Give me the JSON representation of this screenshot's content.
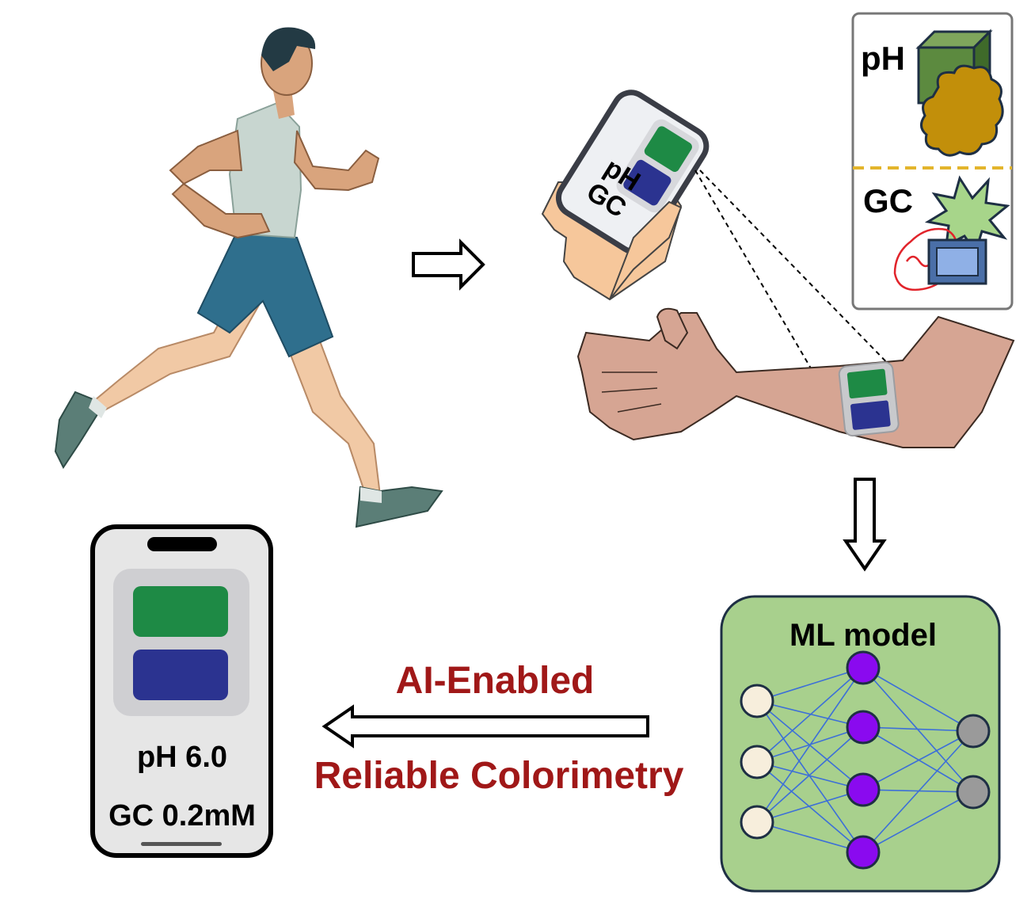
{
  "handheld_phone": {
    "label_top": "pH",
    "label_bottom": "GC",
    "pad_top_color": "#1E8A45",
    "pad_bottom_color": "#2B3390"
  },
  "mechanism_box": {
    "top_label": "pH",
    "bottom_label": "GC",
    "divider_color": "#E3B52C"
  },
  "ml_box": {
    "title": "ML model",
    "background_color": "#A8D08D",
    "input_node_color": "#F7EEDC",
    "hidden_node_color": "#8A0AEF",
    "output_node_color": "#9A9A9A",
    "edge_color": "#3C6FD8"
  },
  "arrow_caption": {
    "line1": "AI-Enabled",
    "line2": "Reliable Colorimetry",
    "color": "#A01818"
  },
  "result_phone": {
    "ph_reading": "pH 6.0",
    "gc_reading": "GC 0.2mM",
    "pad_top_color": "#1E8A45",
    "pad_bottom_color": "#2B3390"
  },
  "icons": [
    "runner-illustration",
    "hand-holding-phone-icon",
    "arm-with-sensor-patch-icon",
    "right-arrow-icon",
    "down-arrow-icon",
    "left-arrow-icon",
    "neural-network-icon",
    "smartphone-icon"
  ]
}
